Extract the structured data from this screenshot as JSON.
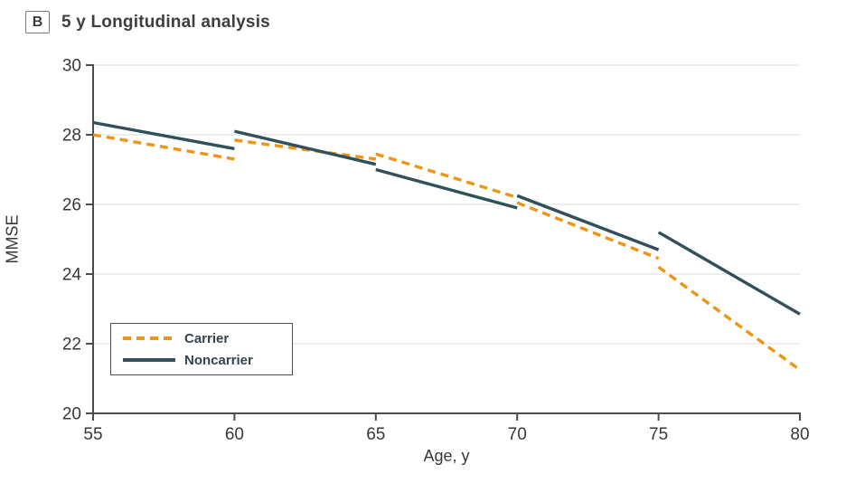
{
  "panel": {
    "label": "B",
    "title": "5 y Longitudinal analysis"
  },
  "axes": {
    "y_label": "MMSE",
    "x_label": "Age, y"
  },
  "legend": {
    "items": [
      {
        "label": "Carrier",
        "style": "dashed"
      },
      {
        "label": "Noncarrier",
        "style": "solid"
      }
    ]
  },
  "colors": {
    "carrier": "#ED9515",
    "noncarrier": "#30505A",
    "axis": "#4c4c4c",
    "gridline": "#e4e4e4",
    "tick_text": "#383838"
  },
  "chart_data": {
    "type": "line",
    "title": "5 y Longitudinal analysis",
    "xlabel": "Age, y",
    "ylabel": "MMSE",
    "xlim": [
      55,
      80
    ],
    "ylim": [
      20,
      30
    ],
    "x_ticks": [
      55,
      60,
      65,
      70,
      75,
      80
    ],
    "y_ticks": [
      20,
      22,
      24,
      26,
      28,
      30
    ],
    "grid": "horizontal",
    "legend_position": "lower-left",
    "note": "Disjoint 5-year segments; each segment spans one age quintile with a discontinuity at its boundary",
    "series": [
      {
        "name": "Carrier",
        "style": "dashed",
        "color": "#ED9515",
        "segments": [
          [
            [
              55,
              28.0
            ],
            [
              60,
              27.3
            ]
          ],
          [
            [
              60,
              27.85
            ],
            [
              65,
              27.3
            ]
          ],
          [
            [
              65,
              27.45
            ],
            [
              70,
              26.2
            ]
          ],
          [
            [
              70,
              26.05
            ],
            [
              75,
              24.45
            ]
          ],
          [
            [
              75,
              24.2
            ],
            [
              80,
              21.25
            ]
          ]
        ]
      },
      {
        "name": "Noncarrier",
        "style": "solid",
        "color": "#30505A",
        "segments": [
          [
            [
              55,
              28.35
            ],
            [
              60,
              27.6
            ]
          ],
          [
            [
              60,
              28.1
            ],
            [
              65,
              27.15
            ]
          ],
          [
            [
              65,
              27.0
            ],
            [
              70,
              25.9
            ]
          ],
          [
            [
              70,
              26.25
            ],
            [
              75,
              24.7
            ]
          ],
          [
            [
              75,
              25.2
            ],
            [
              80,
              22.85
            ]
          ]
        ]
      }
    ]
  }
}
